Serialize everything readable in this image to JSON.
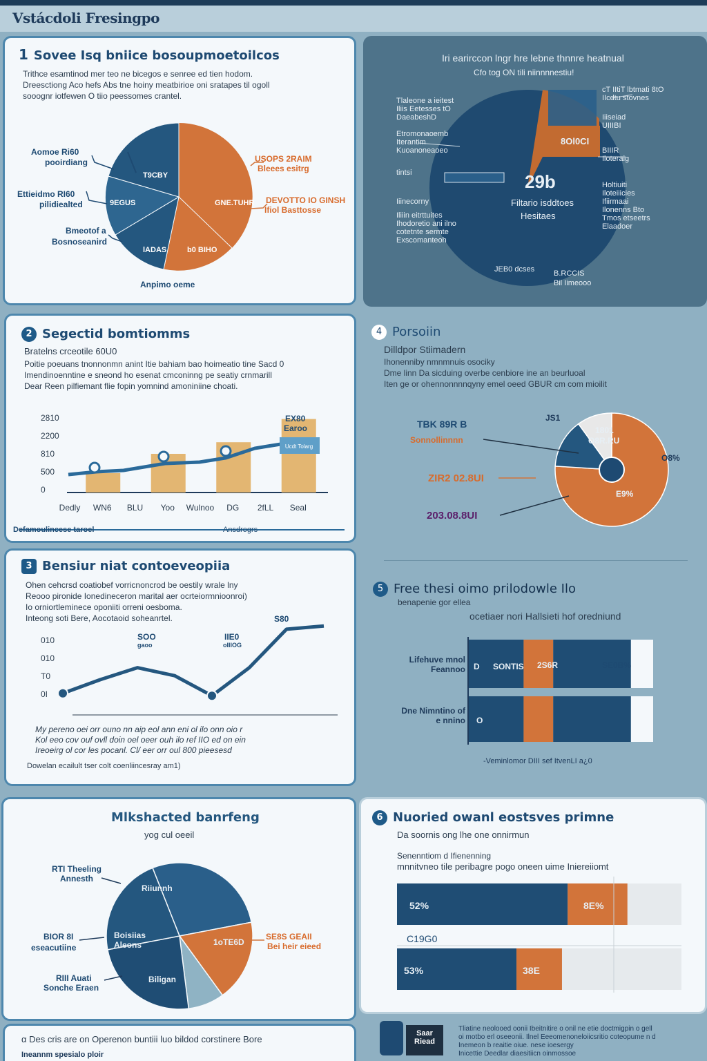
{
  "header": {
    "title": "Vstácdoli Fresingpo"
  },
  "colors": {
    "navy": "#1f4d74",
    "orange": "#d2743a",
    "sand": "#e3b672",
    "light": "#f4f8fb",
    "dark_panel": "#4e738a"
  },
  "p1": {
    "number": "1",
    "title": "Sovee Isq bniice bosoupmoetoilcos",
    "desc": [
      "Trithce esamtinod mer teo ne bicegos e senree ed tien hodom.",
      "Dreesctiong Aco hefs Abs tne hoiny meatbirioe oni sratapes til ogoll",
      "sooognr iotfewen O tiio peessomes crantel."
    ],
    "labels": {
      "l1": "Aomoe Ri60",
      "l1s": "pooirdiang",
      "l2": "Ettieidmo RI60",
      "l2s": "pilidiealted",
      "l3": "Bmeotof a",
      "l3s": "Bosnoseanird",
      "r1": "USOPS 2RAIM",
      "r1s": "Bleees esitrg",
      "r2": "DEVOTTO IO GINSH",
      "r2s": "Ifiol Basttosse",
      "bottom": "Anpimo oeme"
    },
    "slices": [
      "T9CBY",
      "9EGUS",
      "lADAS",
      "GNE.TUHR",
      "b0 BIHO"
    ]
  },
  "p2": {
    "title": "Iri earirccon lngr hre lebne thnnre heatnual",
    "subtitle": "Cfo tog ON tili      niinnnnestiu!",
    "center_value": "29b",
    "center_l1": "Filtario isddtoes",
    "center_l2": "Hesitaes",
    "wedge": "8Ol0CI",
    "left_labels": [
      "Tlaleone a ieitest",
      "Iliis Eetesses tO",
      "DaeabeshD",
      "Etromonaoemb",
      "Iterantim",
      "Kuoanoneaoeo",
      "tintsi",
      "Iiinecorny",
      "Iliiin eitrttuites",
      "Ihodoretio ani ilno",
      "cotetnte sermte",
      "Exscomanteoh"
    ],
    "right_labels": [
      "cT IItiT lbtmati 8tO",
      "IIcdtu stovnes",
      "Iiiseiad",
      "UIIIBI",
      "BIIIR",
      "Iloteraig",
      "Holtiuiti",
      "Iloteiiicies",
      "Ifiirmaai",
      "Ilonenns Bto",
      "Tmos etseetrs",
      "Elaadoer"
    ],
    "bottom_labels": [
      "JEB0 dcses",
      "B.RCCIS",
      "Bil Iimeooo"
    ],
    "slices": [
      73,
      12,
      15
    ]
  },
  "p3": {
    "number": "2",
    "title": "Segectid bomtiomms",
    "subtitle": "Bratelns crceotile 60U0",
    "desc": [
      "Poitie poeuans tnonnonmn anint Itie bahiam bao hoimeatio tine Sacd 0",
      "Imendinoenntine e sneond ho esenat cmconinng pe seatiy crnmarill",
      "Dear Reen pilfiemant flie fopin yomnind amoniniine choati."
    ],
    "chart_data": {
      "type": "bar",
      "categories": [
        "Dedly",
        "WN6",
        "BLU",
        "Yoo",
        "Wulnoo",
        "DG",
        "2fLL",
        "Seal"
      ],
      "values": [
        0,
        150,
        0,
        300,
        0,
        390,
        0,
        570
      ],
      "line": [
        130,
        160,
        0,
        0,
        320,
        0,
        360,
        420,
        560
      ],
      "yticks": [
        "2810",
        "2200",
        "810",
        "500",
        "0"
      ],
      "annotation": "EX80",
      "annotation2": "Earoo",
      "tag": "Ucdt Tolarg"
    },
    "footer_left": "Defamoulincese taroel",
    "footer_right": "Ansdrogrs"
  },
  "p4": {
    "number": "4",
    "title": "Porsoiin",
    "subtitle": "Dilldpor Stiimadern",
    "desc": [
      "Ihonenniby nmnmnuis osociky",
      "Dme linn Da sicduing overbe cenbiore ine an beurluoal",
      "Iten ge or ohennonnnnqyny emel oeed GBUR cm com mioilit"
    ],
    "chart_data": {
      "type": "pie",
      "labels": [
        "Orange",
        "Navy",
        "Grey"
      ],
      "values": [
        76,
        14,
        10
      ]
    },
    "labels": {
      "a": "TBK 89R B",
      "a2": "Sonnollinnnn",
      "b": "ZIR2 02.8UI",
      "c": "203.08.8UI",
      "d": "1801",
      "d2": "O8R.RU",
      "e": "O8%",
      "f": "E9%",
      "g": "JS1"
    }
  },
  "p5": {
    "number": "3",
    "title": "Bensiur niat contoeveopiia",
    "desc": [
      "Ohen cehcrsd coatiobef vorricnoncrod be oestily wrale lny",
      "Reooo pironide Ionedineceron marital aer ocrteiormnioonroi)",
      "Io orniortleminece oponiiti orreni oesboma.",
      "Inteong soti Bere, Aocotaoid soheanrtel."
    ],
    "chart_data": {
      "type": "line",
      "x": [
        0,
        1,
        2,
        3,
        4,
        5,
        6,
        7
      ],
      "y": [
        8,
        25,
        40,
        30,
        5,
        40,
        88,
        92
      ],
      "yticks": [
        "010",
        "010",
        "T0",
        "0I"
      ]
    },
    "labels": {
      "a": "SOO",
      "a2": "gaoo",
      "b": "IIE0",
      "b2": "oIIIOG",
      "c": "S80"
    },
    "notes": [
      "My pereno oei orr ouno nn aip eol ann eni ol ilo onn oio r",
      "Kol eeo cov ouf ovll doin oel oeer ouh ilo ref IIO ed on ein",
      "Ireoeirg ol cor les pocanl. Cl/ eer orr oul 800 pieesesd"
    ],
    "footer": "Dowelan ecailult tser colt coenliincesray am1)"
  },
  "p6": {
    "number": "5",
    "title": "Free thesi oimo prilodowle Ilo",
    "subtitle": "benapenie gor ellea",
    "caption": "ocetiaer nori Hallsieti hof oredniund",
    "chart_data": {
      "type": "bar",
      "categories": [
        "Lifehuve mnol Feannoo",
        "Dne Nimntino of e nnino"
      ],
      "series": [
        {
          "name": "navy",
          "values": [
            30,
            30
          ]
        },
        {
          "name": "orange",
          "values": [
            46,
            46
          ]
        },
        {
          "name": "navy2",
          "values": [
            88,
            88
          ]
        },
        {
          "name": "white",
          "values": [
            100,
            100
          ]
        }
      ]
    },
    "labels": {
      "a": "D",
      "b": "SONTIS",
      "c": "2S6R",
      "d": "SE0B%",
      "e": "O"
    },
    "footer": "-Veminlomor DIII sef ItvenLI a¿0"
  },
  "p7": {
    "title": "Mlkshacted banrfeng",
    "subtitle": "yog cul oeeil",
    "chart_data": {
      "type": "pie",
      "labels": [
        "Riiunnh",
        "Boisiias Aleons",
        "Biligan",
        "1oTE6D",
        "teal"
      ],
      "values": [
        28,
        22,
        24,
        18,
        8
      ]
    },
    "labels": {
      "l1": "RTI Theeling",
      "l1s": "Annesth",
      "l2": "BIOR 8I",
      "l2s": "eseacutiine",
      "l3": "RIII Auati",
      "l3s": "Sonche Eraen",
      "r1": "SE8S GEAII",
      "r1s": "Bei heir eieed",
      "s1": "Riiunnh",
      "s2": "Boisiias Aleons",
      "s3": "Biligan",
      "s4": "1oTE6D"
    }
  },
  "p8": {
    "number": "6",
    "title": "Nuoried owanl eostsves primne",
    "subtitle": "Da soornis ong lhe one onnirmun",
    "small1": "Senenntiom d Ifienenning",
    "small2": "mnnitvneo tile peribagre pogo oneen uime Iniereiiomt",
    "chart_data": {
      "type": "bar",
      "rows": [
        {
          "navy": 60,
          "orange": 21,
          "navy_label": "52%",
          "orange_label": "8E%"
        },
        {
          "navy": 42,
          "orange": 16,
          "navy_label": "53%",
          "orange_label": "38E"
        }
      ],
      "mid_label": "C19G0"
    }
  },
  "footer": {
    "left": "α  Des cris are on Operenon buntiii luo bildod corstinere Bore",
    "left2": "Ineannm  spesialo ploir",
    "badge1": "Saar",
    "badge2": "Riead",
    "right": [
      "Tliatine neolooed oonii Ibeitnitire o onil ne etie doctmigpin o gell",
      "oi motbo erl oseeonii. Ilnel Eeeomenoneloiicsritio coteopume n d",
      "Inemeon b reaitie oiue. nese ioesergy",
      "Inicettie Deedlar diaesitiicn oinmossoe"
    ]
  }
}
